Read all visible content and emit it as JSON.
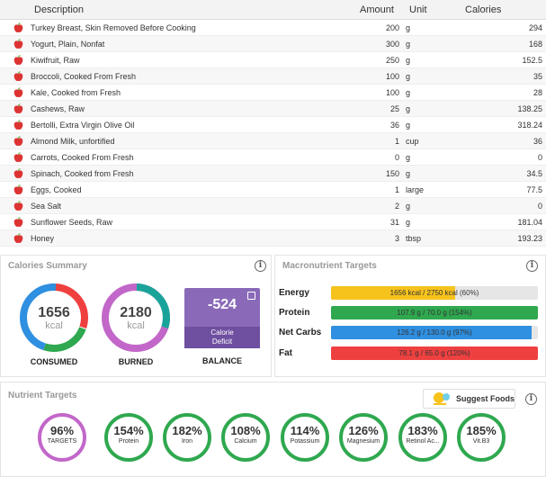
{
  "table": {
    "headers": {
      "description": "Description",
      "amount": "Amount",
      "unit": "Unit",
      "calories": "Calories"
    },
    "rows": [
      {
        "desc": "Turkey Breast, Skin Removed Before Cooking",
        "amount": "200",
        "unit": "g",
        "calories": "294"
      },
      {
        "desc": "Yogurt, Plain, Nonfat",
        "amount": "300",
        "unit": "g",
        "calories": "168"
      },
      {
        "desc": "Kiwifruit, Raw",
        "amount": "250",
        "unit": "g",
        "calories": "152.5"
      },
      {
        "desc": "Broccoli, Cooked From Fresh",
        "amount": "100",
        "unit": "g",
        "calories": "35"
      },
      {
        "desc": "Kale, Cooked from Fresh",
        "amount": "100",
        "unit": "g",
        "calories": "28"
      },
      {
        "desc": "Cashews, Raw",
        "amount": "25",
        "unit": "g",
        "calories": "138.25"
      },
      {
        "desc": "Bertolli, Extra Virgin Olive Oil",
        "amount": "36",
        "unit": "g",
        "calories": "318.24"
      },
      {
        "desc": "Almond Milk, unfortified",
        "amount": "1",
        "unit": "cup",
        "calories": "36"
      },
      {
        "desc": "Carrots, Cooked From Fresh",
        "amount": "0",
        "unit": "g",
        "calories": "0"
      },
      {
        "desc": "Spinach, Cooked from Fresh",
        "amount": "150",
        "unit": "g",
        "calories": "34.5"
      },
      {
        "desc": "Eggs, Cooked",
        "amount": "1",
        "unit": "large",
        "calories": "77.5"
      },
      {
        "desc": "Sea Salt",
        "amount": "2",
        "unit": "g",
        "calories": "0"
      },
      {
        "desc": "Sunflower Seeds, Raw",
        "amount": "31",
        "unit": "g",
        "calories": "181.04"
      },
      {
        "desc": "Honey",
        "amount": "3",
        "unit": "tbsp",
        "calories": "193.23"
      }
    ]
  },
  "calories_summary": {
    "title": "Calories Summary",
    "consumed": {
      "value": "1656",
      "unit": "kcal",
      "label": "CONSUMED"
    },
    "burned": {
      "value": "2180",
      "unit": "kcal",
      "label": "BURNED"
    },
    "balance": {
      "value": "-524",
      "sub1": "Calorie",
      "sub2": "Deficit",
      "label": "BALANCE"
    }
  },
  "macros": {
    "title": "Macronutrient Targets",
    "items": [
      {
        "label": "Energy",
        "text": "1656 kcal / 2750 kcal (60%)",
        "fraction": 0.6,
        "color": "#f6c21c"
      },
      {
        "label": "Protein",
        "text": "107.9 g / 70.0 g (154%)",
        "fraction": 1.0,
        "color": "#2fa84f"
      },
      {
        "label": "Net Carbs",
        "text": "126.2 g / 130.0 g (97%)",
        "fraction": 0.97,
        "color": "#2f8fe0"
      },
      {
        "label": "Fat",
        "text": "78.1 g / 65.0 g (120%)",
        "fraction": 1.0,
        "color": "#ef4040"
      }
    ]
  },
  "nutrients": {
    "title": "Nutrient Targets",
    "suggest_label": "Suggest Foods",
    "items": [
      {
        "pct": "96%",
        "name": "TARGETS"
      },
      {
        "pct": "154%",
        "name": "Protein"
      },
      {
        "pct": "182%",
        "name": "Iron"
      },
      {
        "pct": "108%",
        "name": "Calcium"
      },
      {
        "pct": "114%",
        "name": "Potassium"
      },
      {
        "pct": "126%",
        "name": "Magnesium"
      },
      {
        "pct": "183%",
        "name": "Retinol Ac..."
      },
      {
        "pct": "185%",
        "name": "Vit.B3"
      }
    ]
  },
  "colors": {
    "consumed_ring": [
      "#2f8fe0",
      "#2fa84f",
      "#ef4040"
    ],
    "burned_ring": [
      "#c267c9",
      "#1aa39a"
    ],
    "balance": "#8a6ab8",
    "nutrient_ok": "#2fa84f",
    "targets_ring": "#c267c9"
  }
}
